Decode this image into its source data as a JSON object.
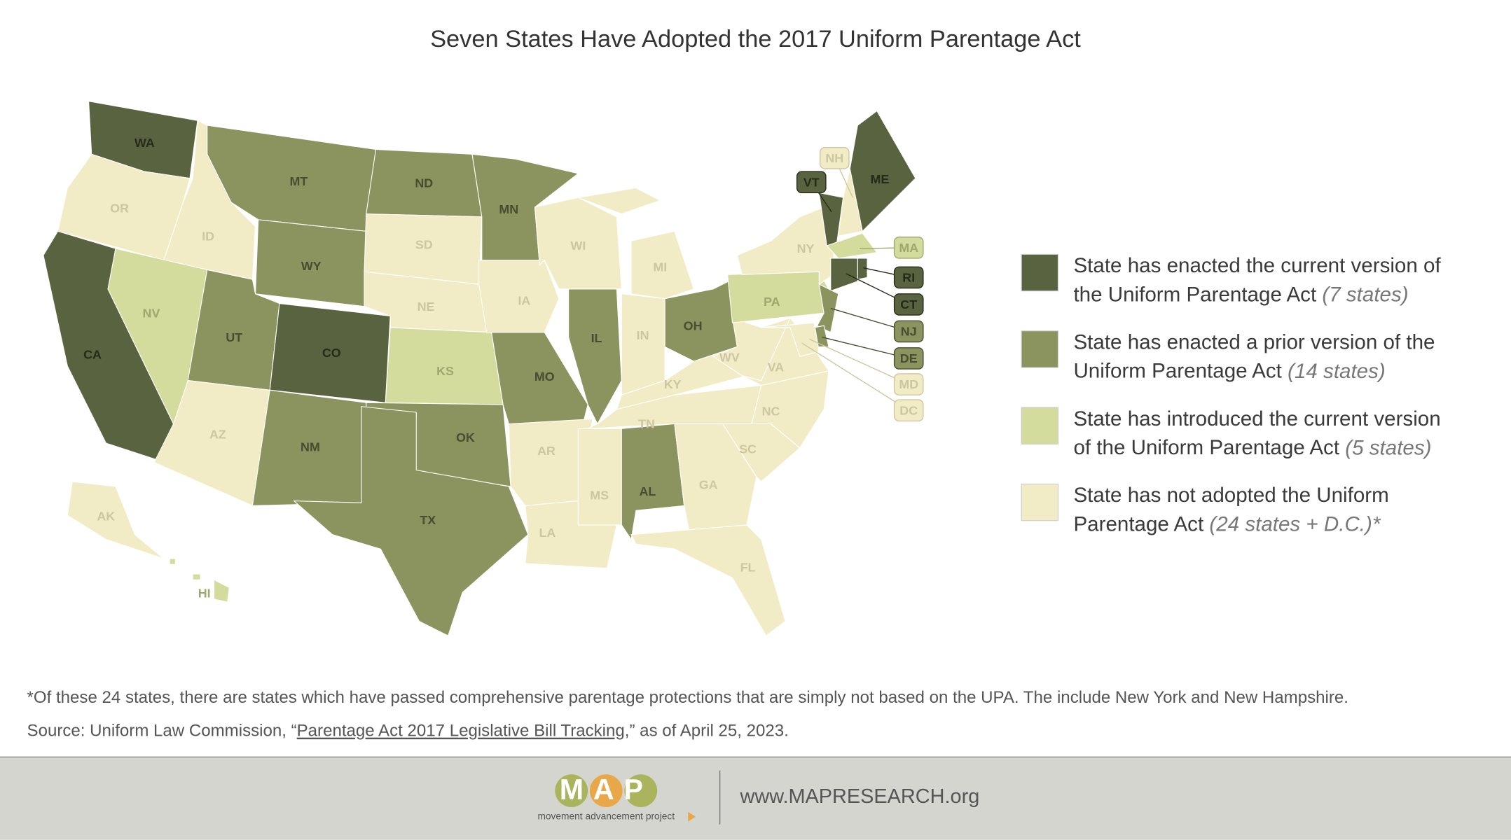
{
  "title": "Seven States Have Adopted the 2017 Uniform Parentage Act",
  "legend": [
    {
      "lines": [
        "State has enacted the current version of",
        "the Uniform Parentage Act"
      ],
      "note": "(7 states)",
      "color": "#5a6340",
      "label_color": "#262a18"
    },
    {
      "lines": [
        "State has enacted a prior version of the",
        "Uniform Parentage Act"
      ],
      "note": "(14 states)",
      "color": "#8b935f",
      "label_color": "#474d30"
    },
    {
      "lines": [
        "State has introduced the current version",
        "of the Uniform Parentage Act"
      ],
      "note": "(5 states)",
      "color": "#d3dc9c",
      "label_color": "#9ea86e"
    },
    {
      "lines": [
        "State has not adopted the Uniform",
        "Parentage Act"
      ],
      "note": "(24 states + D.C.)*",
      "color": "#f2ecc6",
      "label_color": "#cdc6a0"
    }
  ],
  "states": [
    {
      "label": "WA",
      "category": 0
    },
    {
      "label": "OR",
      "category": 3
    },
    {
      "label": "CA",
      "category": 0
    },
    {
      "label": "ID",
      "category": 3
    },
    {
      "label": "NV",
      "category": 2
    },
    {
      "label": "MT",
      "category": 1
    },
    {
      "label": "WY",
      "category": 1
    },
    {
      "label": "UT",
      "category": 1
    },
    {
      "label": "CO",
      "category": 0
    },
    {
      "label": "AZ",
      "category": 3
    },
    {
      "label": "NM",
      "category": 1
    },
    {
      "label": "ND",
      "category": 1
    },
    {
      "label": "SD",
      "category": 3
    },
    {
      "label": "NE",
      "category": 3
    },
    {
      "label": "KS",
      "category": 2
    },
    {
      "label": "OK",
      "category": 1
    },
    {
      "label": "TX",
      "category": 1
    },
    {
      "label": "MN",
      "category": 1
    },
    {
      "label": "IA",
      "category": 3
    },
    {
      "label": "MO",
      "category": 1
    },
    {
      "label": "AR",
      "category": 3
    },
    {
      "label": "LA",
      "category": 3
    },
    {
      "label": "WI",
      "category": 3
    },
    {
      "label": "IL",
      "category": 1
    },
    {
      "label": "MI",
      "category": 3
    },
    {
      "label": "IN",
      "category": 3
    },
    {
      "label": "OH",
      "category": 1
    },
    {
      "label": "KY",
      "category": 3
    },
    {
      "label": "TN",
      "category": 3
    },
    {
      "label": "MS",
      "category": 3
    },
    {
      "label": "AL",
      "category": 1
    },
    {
      "label": "GA",
      "category": 3
    },
    {
      "label": "FL",
      "category": 3
    },
    {
      "label": "SC",
      "category": 3
    },
    {
      "label": "NC",
      "category": 3
    },
    {
      "label": "VA",
      "category": 3
    },
    {
      "label": "WV",
      "category": 3
    },
    {
      "label": "PA",
      "category": 2
    },
    {
      "label": "NY",
      "category": 3
    },
    {
      "label": "VT",
      "category": 0
    },
    {
      "label": "NH",
      "category": 3
    },
    {
      "label": "ME",
      "category": 0
    },
    {
      "label": "MA",
      "category": 2
    },
    {
      "label": "CT",
      "category": 0
    },
    {
      "label": "RI",
      "category": 0
    },
    {
      "label": "NJ",
      "category": 1
    },
    {
      "label": "DE",
      "category": 1
    },
    {
      "label": "MD",
      "category": 3
    },
    {
      "label": "AK",
      "category": 3
    },
    {
      "label": "HI",
      "category": 2
    },
    {
      "label": "DC",
      "category": 3
    }
  ],
  "footnote": "*Of these 24 states, there are states which have passed comprehensive parentage protections that are simply not based on the UPA. The include New York and New Hampshire.",
  "source": {
    "before": "Source: Uniform Law Commission, “",
    "link": "Parentage Act 2017 Legislative Bill Tracking",
    "after": ",” as of April 25, 2023."
  },
  "footer": {
    "logo": "MAP",
    "logo_sub": "movement advancement project",
    "url": "www.MAPRESEARCH.org"
  }
}
